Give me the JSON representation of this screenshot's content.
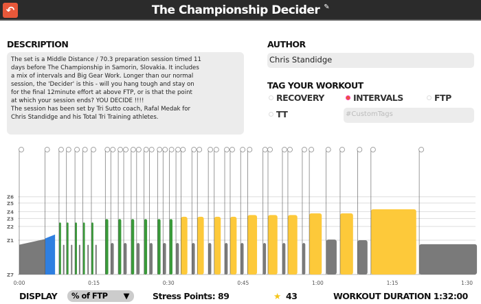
{
  "header": {
    "title": "The Championship Decider",
    "back_icon": "back-arrow-icon",
    "edit_icon": "edit-icon"
  },
  "description": {
    "label": "DESCRIPTION",
    "text": "The set is a Middle Distance / 70.3 preparation session timed 11\ndays before The Championship in Samorin, Slovakia. It includes\na mix of intervals and Big Gear Work. Longer than our normal\nsession, the 'Decider' is this - will you hang tough and stay on\nfor the final 12minute effort at above FTP, or is that the point\nat which your session ends? YOU DECIDE !!!!\nThe session has been set by Tri Sutto coach, Rafal Medak for\nChris Standidge and his Total Tri Training athletes."
  },
  "author": {
    "label": "AUTHOR",
    "value": "Chris Standidge"
  },
  "tags": {
    "label": "TAG YOUR WORKOUT",
    "options": [
      {
        "label": "RECOVERY",
        "selected": false
      },
      {
        "label": "INTERVALS",
        "selected": true
      },
      {
        "label": "FTP",
        "selected": false
      },
      {
        "label": "TT",
        "selected": false
      }
    ],
    "custom_placeholder": "#CustomTags"
  },
  "chart_data": {
    "type": "bar",
    "xlabel": "",
    "ylabel": "",
    "x_unit": "minutes",
    "xlim": [
      0,
      92
    ],
    "zone_labels": [
      {
        "label": "Z6",
        "pct": 136
      },
      {
        "label": "Z5",
        "pct": 125
      },
      {
        "label": "Z4",
        "pct": 110
      },
      {
        "label": "Z3",
        "pct": 98
      },
      {
        "label": "Z2",
        "pct": 84
      },
      {
        "label": "Z1",
        "pct": 60
      },
      {
        "label": "Z7",
        "pct": 0
      }
    ],
    "x_ticks": [
      {
        "label": "0:00",
        "min": 0
      },
      {
        "label": "0:15",
        "min": 15
      },
      {
        "label": "0:30",
        "min": 30
      },
      {
        "label": "0:45",
        "min": 45
      },
      {
        "label": "1:00",
        "min": 60
      },
      {
        "label": "1:15",
        "min": 75
      },
      {
        "label": "1:30",
        "min": 90
      }
    ],
    "colors": {
      "gray": "#7a7a7a",
      "blue": "#2f7fe0",
      "green": "#3a9a3a",
      "yellow": "#fdc93a"
    },
    "blocks": [
      {
        "start": 0,
        "dur": 5.2,
        "p0": 52,
        "p1": 62,
        "color": "gray"
      },
      {
        "start": 5.2,
        "dur": 2,
        "p0": 63,
        "p1": 70,
        "color": "blue"
      },
      {
        "start": 8.0,
        "dur": 0.4,
        "p0": 91,
        "color": "green"
      },
      {
        "start": 8.8,
        "dur": 0.25,
        "p0": 52,
        "color": "gray"
      },
      {
        "start": 9.5,
        "dur": 0.4,
        "p0": 91,
        "color": "green"
      },
      {
        "start": 10.4,
        "dur": 0.25,
        "p0": 52,
        "color": "gray"
      },
      {
        "start": 11.2,
        "dur": 0.4,
        "p0": 91,
        "color": "green"
      },
      {
        "start": 12.0,
        "dur": 0.25,
        "p0": 52,
        "color": "gray"
      },
      {
        "start": 12.8,
        "dur": 0.4,
        "p0": 91,
        "color": "green"
      },
      {
        "start": 13.7,
        "dur": 0.25,
        "p0": 52,
        "color": "gray"
      },
      {
        "start": 14.5,
        "dur": 0.4,
        "p0": 91,
        "color": "green"
      },
      {
        "start": 15.3,
        "dur": 0.25,
        "p0": 52,
        "color": "gray"
      },
      {
        "start": 17.3,
        "dur": 0.6,
        "p0": 97,
        "color": "green"
      },
      {
        "start": 18.4,
        "dur": 0.6,
        "p0": 55,
        "color": "gray"
      },
      {
        "start": 19.9,
        "dur": 0.6,
        "p0": 97,
        "color": "green"
      },
      {
        "start": 21.0,
        "dur": 0.6,
        "p0": 55,
        "color": "gray"
      },
      {
        "start": 22.5,
        "dur": 0.6,
        "p0": 97,
        "color": "green"
      },
      {
        "start": 23.6,
        "dur": 0.6,
        "p0": 55,
        "color": "gray"
      },
      {
        "start": 25.1,
        "dur": 0.6,
        "p0": 97,
        "color": "green"
      },
      {
        "start": 26.2,
        "dur": 0.6,
        "p0": 55,
        "color": "gray"
      },
      {
        "start": 27.8,
        "dur": 0.6,
        "p0": 97,
        "color": "green"
      },
      {
        "start": 28.9,
        "dur": 0.6,
        "p0": 55,
        "color": "gray"
      },
      {
        "start": 30.2,
        "dur": 0.6,
        "p0": 97,
        "color": "green"
      },
      {
        "start": 31.5,
        "dur": 0.6,
        "p0": 55,
        "color": "gray"
      },
      {
        "start": 32.5,
        "dur": 1.3,
        "p0": 101,
        "color": "yellow"
      },
      {
        "start": 34.7,
        "dur": 0.6,
        "p0": 55,
        "color": "gray"
      },
      {
        "start": 35.8,
        "dur": 1.3,
        "p0": 101,
        "color": "yellow"
      },
      {
        "start": 38.0,
        "dur": 0.6,
        "p0": 55,
        "color": "gray"
      },
      {
        "start": 39.2,
        "dur": 1.3,
        "p0": 101,
        "color": "yellow"
      },
      {
        "start": 41.3,
        "dur": 0.6,
        "p0": 55,
        "color": "gray"
      },
      {
        "start": 42.4,
        "dur": 1.3,
        "p0": 101,
        "color": "yellow"
      },
      {
        "start": 44.5,
        "dur": 0.6,
        "p0": 55,
        "color": "gray"
      },
      {
        "start": 45.9,
        "dur": 1.9,
        "p0": 104,
        "color": "yellow"
      },
      {
        "start": 49.0,
        "dur": 0.6,
        "p0": 55,
        "color": "gray"
      },
      {
        "start": 50.0,
        "dur": 1.9,
        "p0": 104,
        "color": "yellow"
      },
      {
        "start": 52.9,
        "dur": 0.6,
        "p0": 55,
        "color": "gray"
      },
      {
        "start": 54.0,
        "dur": 1.9,
        "p0": 104,
        "color": "yellow"
      },
      {
        "start": 56.9,
        "dur": 0.6,
        "p0": 55,
        "color": "gray"
      },
      {
        "start": 58.3,
        "dur": 2.5,
        "p0": 107,
        "color": "yellow"
      },
      {
        "start": 61.7,
        "dur": 2.1,
        "p0": 61,
        "color": "gray"
      },
      {
        "start": 64.5,
        "dur": 2.6,
        "p0": 107,
        "color": "yellow"
      },
      {
        "start": 68.0,
        "dur": 2.0,
        "p0": 60,
        "color": "gray"
      },
      {
        "start": 70.7,
        "dur": 9.1,
        "p0": 114,
        "color": "yellow"
      },
      {
        "start": 80.4,
        "dur": 11.6,
        "p0": 53,
        "color": "gray"
      }
    ]
  },
  "footer": {
    "display_label": "DISPLAY",
    "display_value": "% of FTP",
    "stress_points": "Stress Points: 89",
    "stars": "43",
    "duration": "WORKOUT DURATION 1:32:00"
  }
}
